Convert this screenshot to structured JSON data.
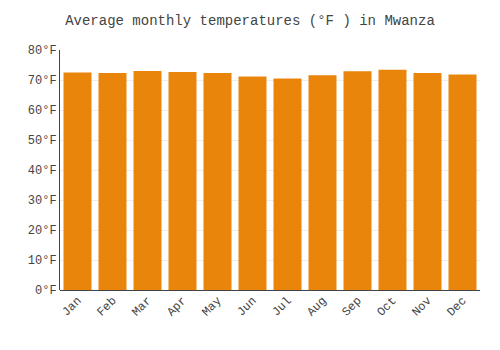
{
  "chart_data": {
    "type": "bar",
    "title": "Average monthly temperatures (°F ) in Mwanza",
    "categories": [
      "Jan",
      "Feb",
      "Mar",
      "Apr",
      "May",
      "Jun",
      "Jul",
      "Aug",
      "Sep",
      "Oct",
      "Nov",
      "Dec"
    ],
    "values": [
      72.5,
      72.3,
      73.0,
      72.7,
      72.3,
      71.2,
      70.5,
      71.6,
      72.9,
      73.4,
      72.3,
      71.8
    ],
    "color": "#E8850A",
    "ylim": [
      0,
      80
    ],
    "yticks": [
      {
        "value": 0,
        "label": "0°F"
      },
      {
        "value": 10,
        "label": "10°F"
      },
      {
        "value": 20,
        "label": "20°F"
      },
      {
        "value": 30,
        "label": "30°F"
      },
      {
        "value": 40,
        "label": "40°F"
      },
      {
        "value": 50,
        "label": "50°F"
      },
      {
        "value": 60,
        "label": "60°F"
      },
      {
        "value": 70,
        "label": "70°F"
      },
      {
        "value": 80,
        "label": "80°F"
      }
    ],
    "grid": true
  }
}
